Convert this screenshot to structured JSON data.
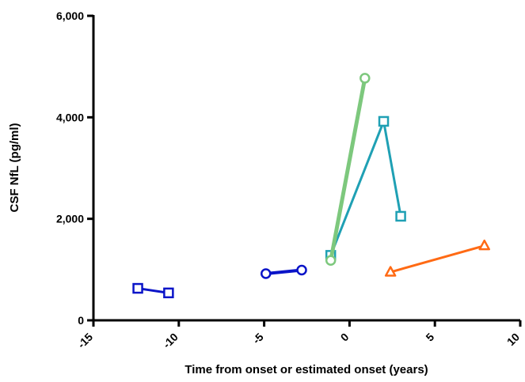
{
  "chart_data": {
    "type": "scatter",
    "title": "",
    "xlabel": "Time from onset or estimated onset  (years)",
    "ylabel": "CSF NfL (pg/ml)",
    "xlim": [
      -15,
      10
    ],
    "ylim": [
      0,
      6000
    ],
    "x_ticks": [
      -15,
      -10,
      -5,
      0,
      5,
      10
    ],
    "x_tick_labels": [
      "-15",
      "-10",
      "-5",
      "0",
      "5",
      "10"
    ],
    "y_ticks": [
      0,
      2000,
      4000,
      6000
    ],
    "y_tick_labels": [
      "0",
      "2,000",
      "4,000",
      "6,000"
    ],
    "grid": false,
    "legend": "none",
    "series": [
      {
        "marker": "square",
        "color": "#0a14c8",
        "line_width": 3,
        "points": [
          {
            "x": -12.4,
            "y": 630
          },
          {
            "x": -10.6,
            "y": 540
          }
        ]
      },
      {
        "marker": "circle",
        "color": "#0a14c8",
        "line_width": 4,
        "points": [
          {
            "x": -4.9,
            "y": 920
          },
          {
            "x": -2.8,
            "y": 990
          }
        ]
      },
      {
        "marker": "square",
        "color": "#1fa0b4",
        "line_width": 3,
        "points": [
          {
            "x": -1.1,
            "y": 1280
          },
          {
            "x": 2.0,
            "y": 3920
          },
          {
            "x": 3.0,
            "y": 2050
          }
        ]
      },
      {
        "marker": "circle",
        "color": "#7dc87d",
        "line_width": 5,
        "points": [
          {
            "x": -1.1,
            "y": 1180
          },
          {
            "x": 0.9,
            "y": 4770
          }
        ]
      },
      {
        "marker": "triangle",
        "color": "#ff6a14",
        "line_width": 3,
        "points": [
          {
            "x": 2.4,
            "y": 950
          },
          {
            "x": 7.9,
            "y": 1470
          }
        ]
      }
    ]
  }
}
